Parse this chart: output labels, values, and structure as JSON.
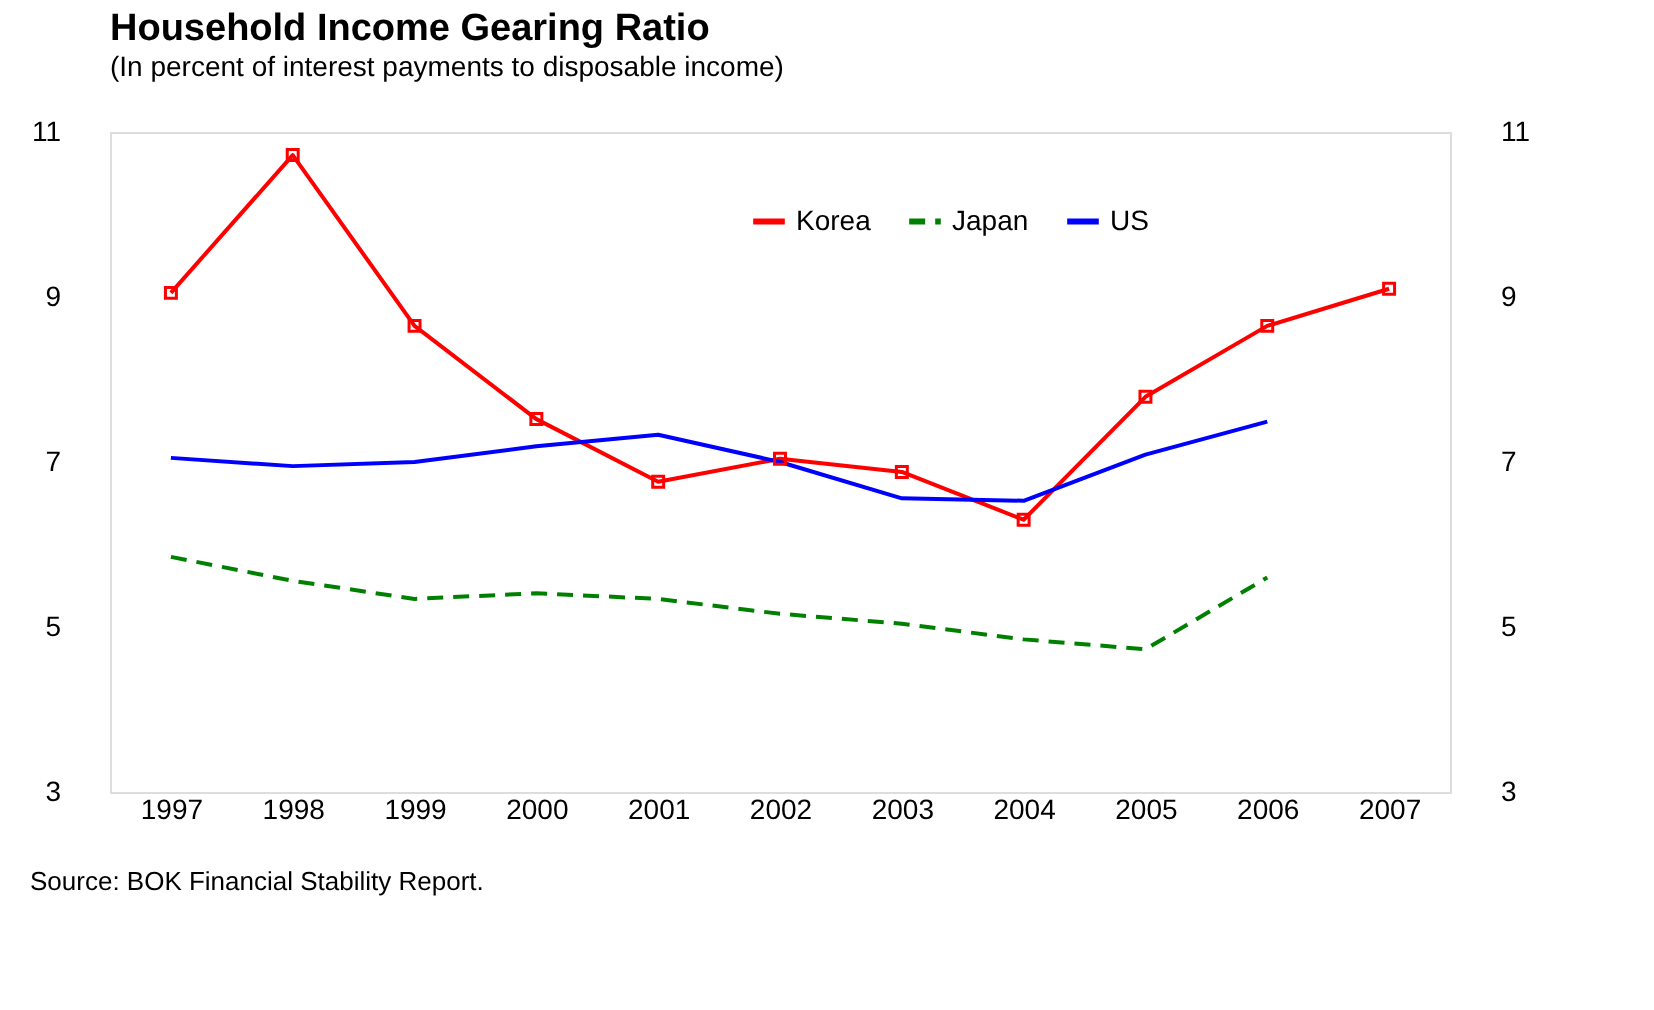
{
  "chart_data": {
    "type": "line",
    "title": "Household Income Gearing Ratio",
    "subtitle": "(In percent of interest payments to disposable income)",
    "categories": [
      "1997",
      "1998",
      "1999",
      "2000",
      "2001",
      "2002",
      "2003",
      "2004",
      "2005",
      "2006",
      "2007"
    ],
    "series": [
      {
        "name": "Korea",
        "color": "#ff0000",
        "marker": "square",
        "line_style": "solid",
        "values": [
          9.05,
          10.72,
          8.65,
          7.52,
          6.76,
          7.04,
          6.88,
          6.3,
          7.79,
          8.65,
          9.1
        ]
      },
      {
        "name": "Japan",
        "color": "#008000",
        "marker": "none",
        "line_style": "dashed",
        "values": [
          5.85,
          5.56,
          5.34,
          5.41,
          5.34,
          5.16,
          5.04,
          4.85,
          4.73,
          5.6,
          null
        ]
      },
      {
        "name": "US",
        "color": "#0000ff",
        "marker": "none",
        "line_style": "solid",
        "values": [
          7.05,
          6.95,
          7.0,
          7.19,
          7.33,
          7.0,
          6.56,
          6.53,
          7.09,
          7.49,
          null
        ]
      }
    ],
    "ylim": [
      3,
      11
    ],
    "yticks": [
      3,
      5,
      7,
      9,
      11
    ],
    "y2lim": [
      3,
      11
    ],
    "y2ticks": [
      3,
      5,
      7,
      9,
      11
    ],
    "grid": false,
    "legend": "top",
    "annotations": [
      "Source: BOK Financial Stability Report."
    ]
  }
}
